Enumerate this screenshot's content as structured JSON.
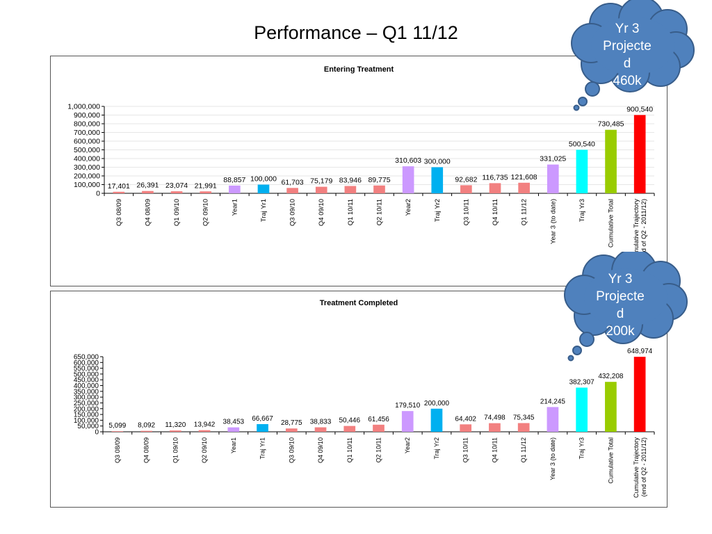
{
  "slide_title": "Performance – Q1 11/12",
  "colors": {
    "quarter": "#F28080",
    "year": "#CC99FF",
    "trajectory": "#00B0F0",
    "year3_projection": "#00FFFF",
    "cumulative": "#99CC00",
    "cumulative_trajectory": "#FF0000",
    "cloud_fill": "#4F81BD",
    "cloud_stroke": "#385D8A"
  },
  "callouts": [
    {
      "lines": [
        "Yr 3",
        "Projecte",
        "d",
        "460k"
      ]
    },
    {
      "lines": [
        "Yr 3",
        "Projecte",
        "d",
        "200k"
      ]
    }
  ],
  "chart_data": [
    {
      "type": "bar",
      "title": "Entering Treatment",
      "categories": [
        "Q3 08/09",
        "Q4 08/09",
        "Q1 09/10",
        "Q2 09/10",
        "Year1",
        "Traj Yr1",
        "Q3 09/10",
        "Q4 09/10",
        "Q1 10/11",
        "Q2 10/11",
        "Year2",
        "Traj Yr2",
        "Q3 10/11",
        "Q4 10/11",
        "Q1 11/12",
        "Year 3 (to date)",
        "Traj Yr3",
        "Cumulative Total",
        "Cumulative Trajectory (end of Q2 - 2011/12)"
      ],
      "values": [
        17401,
        26391,
        23074,
        21991,
        88857,
        100000,
        61703,
        75179,
        83946,
        89775,
        310603,
        300000,
        92682,
        116735,
        121608,
        331025,
        500540,
        730485,
        900540
      ],
      "data_labels": [
        "17,401",
        "26,391",
        "23,074",
        "21,991",
        "88,857",
        "100,000",
        "61,703",
        "75,179",
        "83,946",
        "89,775",
        "310,603",
        "300,000",
        "92,682",
        "116,735",
        "121,608",
        "331,025",
        "500,540",
        "730,485",
        "900,540"
      ],
      "bar_colors": [
        "quarter",
        "quarter",
        "quarter",
        "quarter",
        "year",
        "trajectory",
        "quarter",
        "quarter",
        "quarter",
        "quarter",
        "year",
        "trajectory",
        "quarter",
        "quarter",
        "quarter",
        "year",
        "year3_projection",
        "cumulative",
        "cumulative_trajectory"
      ],
      "ylim": [
        0,
        1000000
      ],
      "yticks": [
        "0",
        "100,000",
        "200,000",
        "300,000",
        "400,000",
        "500,000",
        "600,000",
        "700,000",
        "800,000",
        "900,000",
        "1,000,000"
      ],
      "grid": true,
      "legend": "none"
    },
    {
      "type": "bar",
      "title": "Treatment Completed",
      "categories": [
        "Q3 08/09",
        "Q4 08/09",
        "Q1 09/10",
        "Q2 09/10",
        "Year1",
        "Traj Yr1",
        "Q3 09/10",
        "Q4 09/10",
        "Q1 10/11",
        "Q2 10/11",
        "Year2",
        "Traj Yr2",
        "Q3 10/11",
        "Q4 10/11",
        "Q1 11/12",
        "Year 3 (to date)",
        "Traj Yr3",
        "Cumulative Total",
        "Cumulative Trajectory (end of Q2 - 2011/12)"
      ],
      "values": [
        5099,
        8092,
        11320,
        13942,
        38453,
        66667,
        28775,
        38833,
        50446,
        61456,
        179510,
        200000,
        64402,
        74498,
        75345,
        214245,
        382307,
        432208,
        648974
      ],
      "data_labels": [
        "5,099",
        "8,092",
        "11,320",
        "13,942",
        "38,453",
        "66,667",
        "28,775",
        "38,833",
        "50,446",
        "61,456",
        "179,510",
        "200,000",
        "64,402",
        "74,498",
        "75,345",
        "214,245",
        "382,307",
        "432,208",
        "648,974"
      ],
      "bar_colors": [
        "quarter",
        "quarter",
        "quarter",
        "quarter",
        "year",
        "trajectory",
        "quarter",
        "quarter",
        "quarter",
        "quarter",
        "year",
        "trajectory",
        "quarter",
        "quarter",
        "quarter",
        "year",
        "year3_projection",
        "cumulative",
        "cumulative_trajectory"
      ],
      "ylim": [
        0,
        650000
      ],
      "yticks": [
        "0",
        "50,000",
        "100,000",
        "150,000",
        "200,000",
        "250,000",
        "300,000",
        "350,000",
        "400,000",
        "450,000",
        "500,000",
        "550,000",
        "600,000",
        "650,000"
      ],
      "grid": false,
      "legend": "none"
    }
  ]
}
